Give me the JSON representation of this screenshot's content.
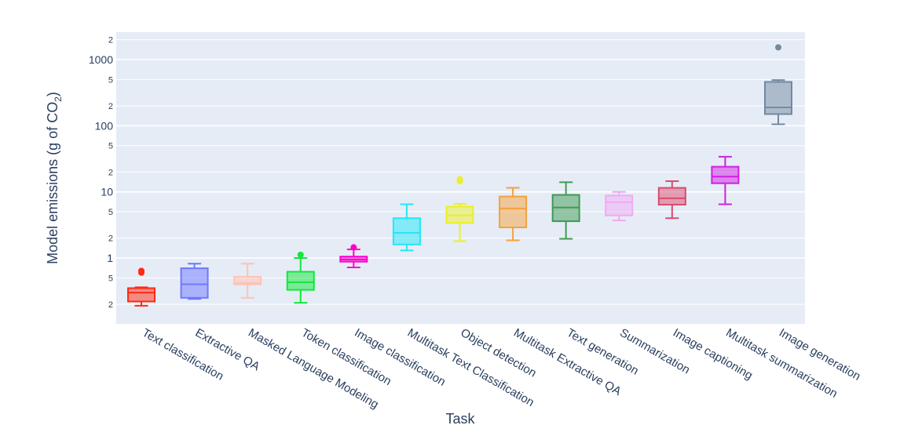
{
  "chart_data": {
    "type": "box",
    "xlabel": "Task",
    "ylabel": "Model emissions (g of CO2)",
    "ylabel_parts": {
      "main": "Model emissions (g of CO",
      "sub": "2",
      "end": ")"
    },
    "y_scale": "log",
    "ylim": [
      0.12,
      3000
    ],
    "y_major_ticks": [
      {
        "value": 1,
        "label": "1"
      },
      {
        "value": 10,
        "label": "10"
      },
      {
        "value": 100,
        "label": "100"
      },
      {
        "value": 1000,
        "label": "1000"
      }
    ],
    "y_minor_ticks": [
      {
        "value": 0.2,
        "label": "2"
      },
      {
        "value": 0.5,
        "label": "5"
      },
      {
        "value": 2,
        "label": "2"
      },
      {
        "value": 5,
        "label": "5"
      },
      {
        "value": 20,
        "label": "2"
      },
      {
        "value": 50,
        "label": "5"
      },
      {
        "value": 200,
        "label": "2"
      },
      {
        "value": 500,
        "label": "5"
      },
      {
        "value": 2000,
        "label": "2"
      }
    ],
    "grid": true,
    "legend": "none",
    "series": [
      {
        "category": "Text classification",
        "color": "#ff2a12",
        "lower_fence": 0.19,
        "q1": 0.22,
        "median": 0.3,
        "q3": 0.35,
        "upper_fence": 0.36,
        "outliers": [
          0.6,
          0.64
        ]
      },
      {
        "category": "Extractive QA",
        "color": "#6f78ff",
        "lower_fence": 0.24,
        "q1": 0.25,
        "median": 0.4,
        "q3": 0.7,
        "upper_fence": 0.82,
        "outliers": []
      },
      {
        "category": "Masked Language Modeling",
        "color": "#ffc2b4",
        "lower_fence": 0.25,
        "q1": 0.4,
        "median": 0.42,
        "q3": 0.52,
        "upper_fence": 0.82,
        "outliers": []
      },
      {
        "category": "Token classification",
        "color": "#11e83a",
        "lower_fence": 0.21,
        "q1": 0.33,
        "median": 0.43,
        "q3": 0.62,
        "upper_fence": 1.0,
        "outliers": [
          1.12
        ]
      },
      {
        "category": "Image classification",
        "color": "#ff00cc",
        "lower_fence": 0.72,
        "q1": 0.88,
        "median": 0.95,
        "q3": 1.05,
        "upper_fence": 1.35,
        "outliers": [
          1.45
        ]
      },
      {
        "category": "Multitask Text Classification",
        "color": "#21e8f7",
        "lower_fence": 1.3,
        "q1": 1.6,
        "median": 2.4,
        "q3": 4.0,
        "upper_fence": 6.5,
        "outliers": []
      },
      {
        "category": "Object detection",
        "color": "#ecef2a",
        "lower_fence": 1.8,
        "q1": 3.4,
        "median": 4.4,
        "q3": 6.0,
        "upper_fence": 6.6,
        "outliers": [
          14.5,
          15.5
        ]
      },
      {
        "category": "Multitask Extractive QA",
        "color": "#f6a13c",
        "lower_fence": 1.85,
        "q1": 2.9,
        "median": 5.6,
        "q3": 8.5,
        "upper_fence": 11.5,
        "outliers": []
      },
      {
        "category": "Text generation",
        "color": "#3f9a53",
        "lower_fence": 1.95,
        "q1": 3.6,
        "median": 5.8,
        "q3": 9.0,
        "upper_fence": 14.0,
        "outliers": []
      },
      {
        "category": "Summarization",
        "color": "#f1a9f4",
        "lower_fence": 3.7,
        "q1": 4.4,
        "median": 7.0,
        "q3": 8.8,
        "upper_fence": 10.0,
        "outliers": []
      },
      {
        "category": "Image captioning",
        "color": "#d94c6e",
        "lower_fence": 4.0,
        "q1": 6.4,
        "median": 8.0,
        "q3": 11.5,
        "upper_fence": 14.5,
        "outliers": []
      },
      {
        "category": "Multitask summarization",
        "color": "#d21fe3",
        "lower_fence": 6.5,
        "q1": 13.5,
        "median": 17.0,
        "q3": 24.0,
        "upper_fence": 34.0,
        "outliers": []
      },
      {
        "category": "Image generation",
        "color": "#7389a0",
        "lower_fence": 105,
        "q1": 150,
        "median": 190,
        "q3": 460,
        "upper_fence": 490,
        "outliers": [
          1530
        ]
      }
    ]
  }
}
